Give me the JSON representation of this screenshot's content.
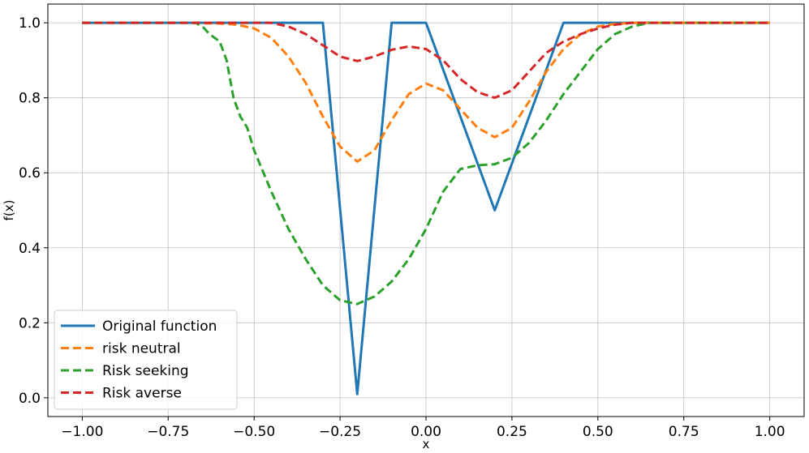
{
  "chart_data": {
    "type": "line",
    "xlabel": "x",
    "ylabel": "f(x)",
    "xlim": [
      -1.1,
      1.1
    ],
    "ylim": [
      -0.05,
      1.05
    ],
    "xticks": [
      -1.0,
      -0.75,
      -0.5,
      -0.25,
      0.0,
      0.25,
      0.5,
      0.75,
      1.0
    ],
    "xtick_labels": [
      "−1.00",
      "−0.75",
      "−0.50",
      "−0.25",
      "0.00",
      "0.25",
      "0.50",
      "0.75",
      "1.00"
    ],
    "yticks": [
      0.0,
      0.2,
      0.4,
      0.6,
      0.8,
      1.0
    ],
    "ytick_labels": [
      "0.0",
      "0.2",
      "0.4",
      "0.6",
      "0.8",
      "1.0"
    ],
    "grid": true,
    "legend_position": "lower-left",
    "series": [
      {
        "name": "Original function",
        "color": "#1f77b4",
        "style": "solid",
        "x": [
          -1.0,
          -0.3,
          -0.2,
          -0.1,
          0.0,
          0.2,
          0.4,
          1.0
        ],
        "y": [
          1.0,
          1.0,
          0.01,
          1.0,
          1.0,
          0.5,
          1.0,
          1.0
        ]
      },
      {
        "name": "risk neutral",
        "color": "#ff7f0e",
        "style": "dashed",
        "x": [
          -1.0,
          -0.7,
          -0.6,
          -0.55,
          -0.5,
          -0.45,
          -0.4,
          -0.35,
          -0.3,
          -0.25,
          -0.2,
          -0.15,
          -0.1,
          -0.05,
          0.0,
          0.05,
          0.1,
          0.15,
          0.2,
          0.25,
          0.3,
          0.35,
          0.4,
          0.45,
          0.5,
          0.55,
          0.6,
          0.65,
          0.7,
          1.0
        ],
        "y": [
          1.0,
          1.0,
          0.998,
          0.995,
          0.985,
          0.96,
          0.91,
          0.84,
          0.75,
          0.67,
          0.63,
          0.66,
          0.74,
          0.81,
          0.838,
          0.82,
          0.77,
          0.72,
          0.695,
          0.72,
          0.79,
          0.87,
          0.93,
          0.97,
          0.99,
          0.997,
          1.0,
          1.0,
          1.0,
          1.0
        ]
      },
      {
        "name": "Risk seeking",
        "color": "#2ca02c",
        "style": "dashed",
        "x": [
          -1.0,
          -0.67,
          -0.65,
          -0.63,
          -0.6,
          -0.58,
          -0.56,
          -0.54,
          -0.52,
          -0.5,
          -0.45,
          -0.4,
          -0.35,
          -0.3,
          -0.25,
          -0.2,
          -0.15,
          -0.1,
          -0.05,
          0.0,
          0.05,
          0.1,
          0.15,
          0.2,
          0.25,
          0.3,
          0.35,
          0.4,
          0.45,
          0.5,
          0.55,
          0.6,
          0.65,
          0.7,
          1.0
        ],
        "y": [
          1.0,
          1.0,
          0.99,
          0.97,
          0.95,
          0.9,
          0.8,
          0.75,
          0.72,
          0.66,
          0.55,
          0.45,
          0.37,
          0.3,
          0.26,
          0.25,
          0.27,
          0.31,
          0.37,
          0.45,
          0.55,
          0.61,
          0.62,
          0.623,
          0.64,
          0.68,
          0.74,
          0.81,
          0.87,
          0.93,
          0.97,
          0.99,
          1.0,
          1.0,
          1.0
        ]
      },
      {
        "name": "Risk averse",
        "color": "#d62728",
        "style": "dashed",
        "x": [
          -1.0,
          -0.45,
          -0.4,
          -0.35,
          -0.3,
          -0.25,
          -0.2,
          -0.15,
          -0.1,
          -0.05,
          0.0,
          0.05,
          0.1,
          0.15,
          0.2,
          0.25,
          0.3,
          0.35,
          0.4,
          0.45,
          0.5,
          0.55,
          0.6,
          0.65,
          0.7,
          1.0
        ],
        "y": [
          1.0,
          1.0,
          0.99,
          0.97,
          0.94,
          0.91,
          0.898,
          0.91,
          0.928,
          0.937,
          0.93,
          0.9,
          0.85,
          0.815,
          0.8,
          0.82,
          0.87,
          0.92,
          0.95,
          0.97,
          0.985,
          0.995,
          1.0,
          1.0,
          1.0,
          1.0
        ]
      }
    ]
  }
}
